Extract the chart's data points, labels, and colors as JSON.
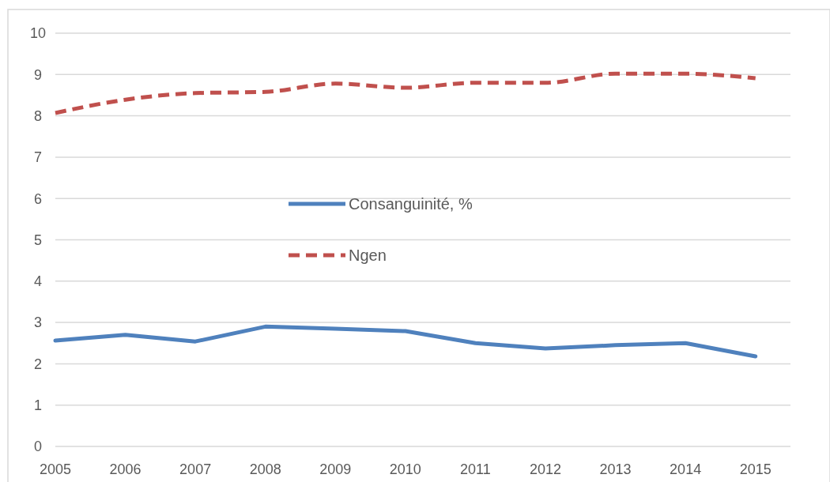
{
  "chart_data": {
    "type": "line",
    "x": [
      2005,
      2006,
      2007,
      2008,
      2009,
      2010,
      2011,
      2012,
      2013,
      2014,
      2015
    ],
    "xlim": [
      2005,
      2015.5
    ],
    "xticks": [
      2005,
      2006,
      2007,
      2008,
      2009,
      2010,
      2011,
      2012,
      2013,
      2014,
      2015
    ],
    "ylim": [
      0,
      10
    ],
    "yticks": [
      0,
      1,
      2,
      3,
      4,
      5,
      6,
      7,
      8,
      9,
      10
    ],
    "grid": "y",
    "legend": "center",
    "series": [
      {
        "name": "Consanguinité, %",
        "color": "#4f81bd",
        "line_style": "solid",
        "values": [
          2.56,
          2.7,
          2.54,
          2.9,
          2.85,
          2.79,
          2.5,
          2.37,
          2.45,
          2.5,
          2.18
        ]
      },
      {
        "name": "Ngen",
        "color": "#c0504d",
        "line_style": "dashed",
        "values": [
          8.07,
          8.39,
          8.55,
          8.58,
          8.78,
          8.68,
          8.8,
          8.8,
          9.02,
          9.02,
          8.91
        ]
      }
    ]
  }
}
